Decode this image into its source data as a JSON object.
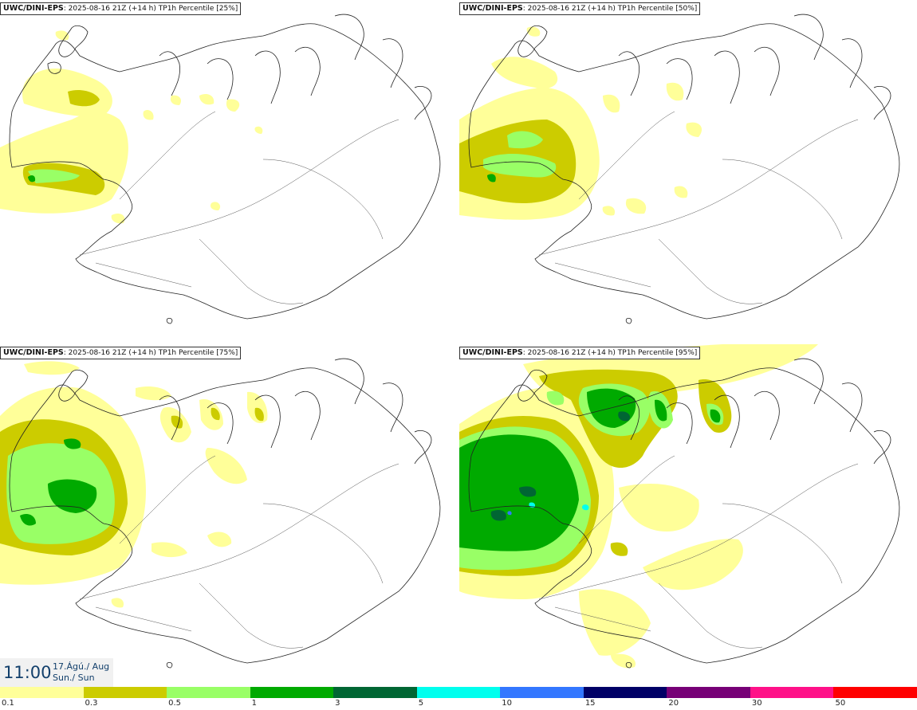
{
  "panels": [
    {
      "model": "UWC/DINI-EPS",
      "run": ": 2025-08-16 21Z (+14 h)",
      "field": " TP1h Percentile [25%]"
    },
    {
      "model": "UWC/DINI-EPS",
      "run": ": 2025-08-16 21Z (+14 h)",
      "field": " TP1h Percentile [50%]"
    },
    {
      "model": "UWC/DINI-EPS",
      "run": ": 2025-08-16 21Z (+14 h)",
      "field": " TP1h Percentile [75%]"
    },
    {
      "model": "UWC/DINI-EPS",
      "run": ": 2025-08-16 21Z (+14 h)",
      "field": " TP1h Percentile [95%]"
    }
  ],
  "valid_time": {
    "time": "11:00",
    "date": "17.Ágú./ Aug",
    "day": "Sun./ Sun"
  },
  "legend": {
    "ticks": [
      "0.1",
      "0.3",
      "0.5",
      "1",
      "3",
      "5",
      "10",
      "15",
      "20",
      "30",
      "50"
    ],
    "colors": [
      "#ffff99",
      "#cccc00",
      "#99ff66",
      "#00aa00",
      "#006633",
      "#00ffee",
      "#3377ff",
      "#000066",
      "#770077",
      "#ff1188",
      "#ff0000"
    ]
  },
  "colors": {
    "coast": "#222222",
    "road": "#555555",
    "background": "#ffffff"
  }
}
